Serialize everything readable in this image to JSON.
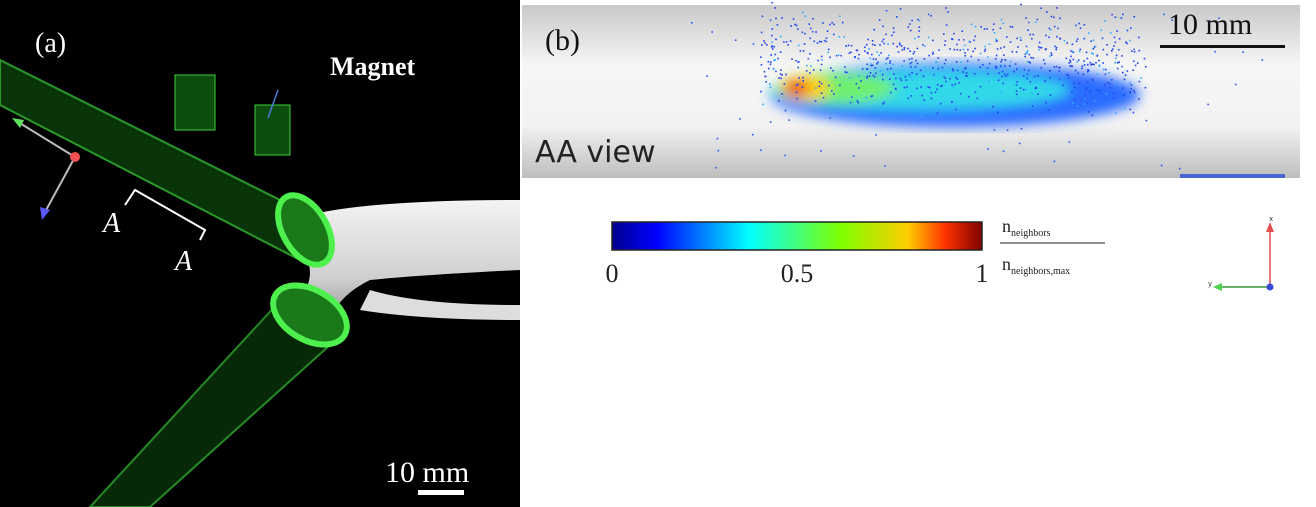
{
  "panel_a": {
    "label": "(a)",
    "magnet_label": "Magnet",
    "section_labels": [
      "A",
      "A"
    ],
    "scale_bar": "10 mm"
  },
  "panel_b": {
    "label": "(b)",
    "scale_bar": "10 mm",
    "view_label": "AA view",
    "colorbar": {
      "lim": [
        0,
        1
      ],
      "ticks": [
        0,
        0.5,
        1
      ],
      "numerator": {
        "symbol": "n",
        "subscript": "neighbors"
      },
      "denominator": {
        "symbol": "n",
        "subscript": "neighbors,max"
      }
    },
    "axes_labels": [
      "x",
      "y"
    ]
  }
}
